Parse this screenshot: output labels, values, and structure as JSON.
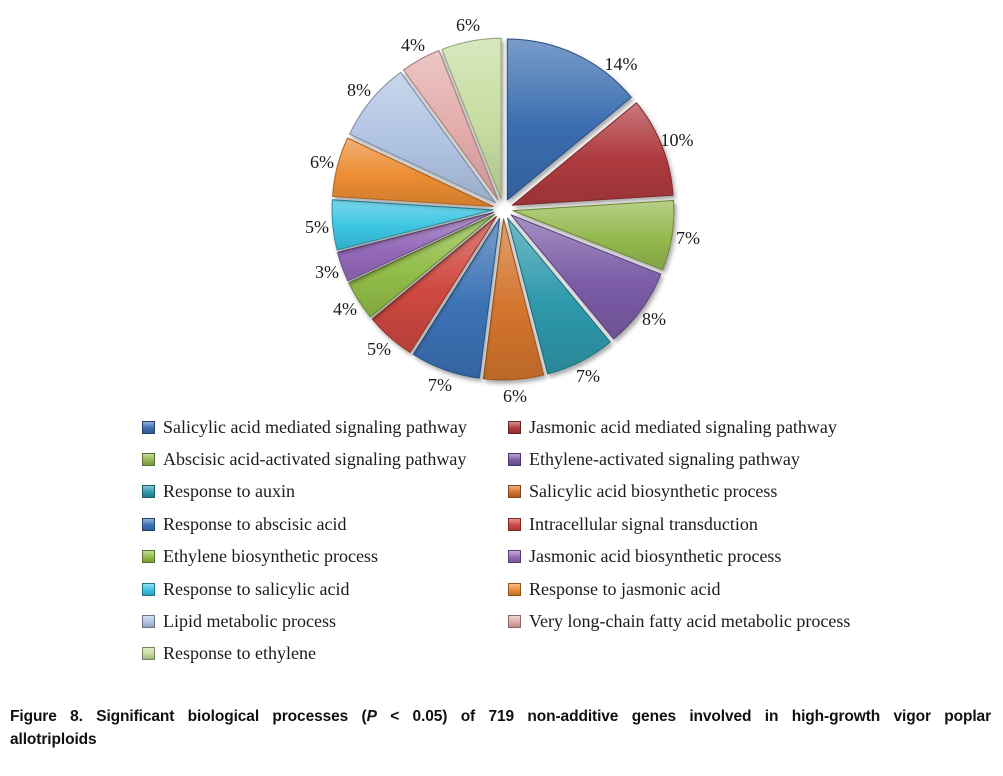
{
  "figure": {
    "caption": {
      "line1_prefix": "Figure 8. Significant biological processes (",
      "line1_p": "P",
      "line1_suffix": " < 0.05) of 719 non-additive genes involved in high-growth vigor poplar",
      "line2": "allotriploids"
    }
  },
  "chart_data": {
    "type": "pie",
    "title": "",
    "exploded": true,
    "start_angle_deg": 0,
    "direction": "clockwise",
    "legend_position": "bottom",
    "legend_columns": 2,
    "total_percent": 100,
    "series": [
      {
        "name": "Salicylic acid mediated signaling pathway",
        "value": 14,
        "label": "14%",
        "color": "#3A6DB0"
      },
      {
        "name": "Jasmonic acid mediated signaling pathway",
        "value": 10,
        "label": "10%",
        "color": "#AE3A3E"
      },
      {
        "name": "Abscisic acid-activated signaling pathway",
        "value": 7,
        "label": "7%",
        "color": "#94B94E"
      },
      {
        "name": "Ethylene-activated signaling pathway",
        "value": 8,
        "label": "8%",
        "color": "#7B5CA7"
      },
      {
        "name": "Response to auxin",
        "value": 7,
        "label": "7%",
        "color": "#2E99AC"
      },
      {
        "name": "Salicylic acid biosynthetic process",
        "value": 6,
        "label": "6%",
        "color": "#D4752E"
      },
      {
        "name": "Response to abscisic acid",
        "value": 7,
        "label": "7%",
        "color": "#3B72B6"
      },
      {
        "name": "Intracellular signal transduction",
        "value": 5,
        "label": "5%",
        "color": "#CE4840"
      },
      {
        "name": "Ethylene biosynthetic process",
        "value": 4,
        "label": "4%",
        "color": "#92BE48"
      },
      {
        "name": "Jasmonic acid biosynthetic process",
        "value": 3,
        "label": "3%",
        "color": "#9569B9"
      },
      {
        "name": "Response to salicylic acid",
        "value": 5,
        "label": "5%",
        "color": "#3BC4E2"
      },
      {
        "name": "Response to jasmonic acid",
        "value": 6,
        "label": "6%",
        "color": "#EC8D33"
      },
      {
        "name": "Lipid metabolic process",
        "value": 8,
        "label": "8%",
        "color": "#AFC3E3"
      },
      {
        "name": "Very long-chain fatty acid metabolic process",
        "value": 4,
        "label": "4%",
        "color": "#E2ABA9"
      },
      {
        "name": "Response to ethylene",
        "value": 6,
        "label": "6%",
        "color": "#C6DC9F"
      }
    ],
    "label_text_color": "#1b1b1b",
    "background": "#ffffff"
  }
}
